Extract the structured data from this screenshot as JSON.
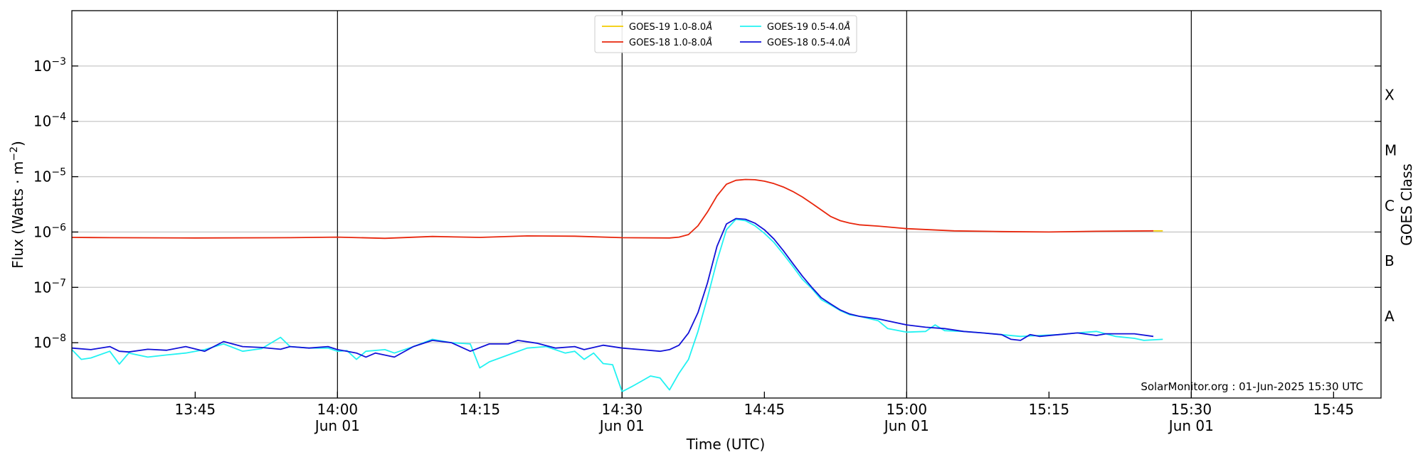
{
  "chart_data": {
    "type": "line",
    "ylabel": "Flux (Watts · m",
    "ylabel_sup": "−2",
    "ylabel_close": ")",
    "xlabel": "Time (UTC)",
    "right_label": "GOES Class",
    "credit": "SolarMonitor.org : 01-Jun-2025 15:30 UTC",
    "y_scale": "log",
    "ylim": [
      "1e-9",
      "1e-2"
    ],
    "xlim": [
      "13:32",
      "15:50"
    ],
    "grid": "horizontal at decades",
    "legend_position": "top-center",
    "y_ticks": [
      {
        "value": "1e-8",
        "base": "10",
        "exp": "−8"
      },
      {
        "value": "1e-7",
        "base": "10",
        "exp": "−7"
      },
      {
        "value": "1e-6",
        "base": "10",
        "exp": "−6"
      },
      {
        "value": "1e-5",
        "base": "10",
        "exp": "−5"
      },
      {
        "value": "1e-4",
        "base": "10",
        "exp": "−4"
      },
      {
        "value": "1e-3",
        "base": "10",
        "exp": "−3"
      }
    ],
    "x_ticks": [
      {
        "time": "13:45",
        "label": "13:45",
        "sub": ""
      },
      {
        "time": "14:00",
        "label": "14:00",
        "sub": "Jun 01"
      },
      {
        "time": "14:15",
        "label": "14:15",
        "sub": ""
      },
      {
        "time": "14:30",
        "label": "14:30",
        "sub": "Jun 01"
      },
      {
        "time": "14:45",
        "label": "14:45",
        "sub": ""
      },
      {
        "time": "15:00",
        "label": "15:00",
        "sub": "Jun 01"
      },
      {
        "time": "15:15",
        "label": "15:15",
        "sub": ""
      },
      {
        "time": "15:30",
        "label": "15:30",
        "sub": "Jun 01"
      },
      {
        "time": "15:45",
        "label": "15:45",
        "sub": ""
      }
    ],
    "vlines": [
      "14:00",
      "14:30",
      "15:00",
      "15:30"
    ],
    "goes_classes": [
      {
        "label": "A",
        "value": "3e-8"
      },
      {
        "label": "B",
        "value": "3e-7"
      },
      {
        "label": "C",
        "value": "3e-6"
      },
      {
        "label": "M",
        "value": "3e-5"
      },
      {
        "label": "X",
        "value": "3e-4"
      }
    ],
    "series": [
      {
        "name": "GOES-19 1.0-8.0Å",
        "legend_base": "GOES-19 1.0-8.0",
        "color": "#f2cc00",
        "points": [
          [
            "15:26",
            1.05e-06
          ],
          [
            "15:27",
            1.05e-06
          ]
        ]
      },
      {
        "name": "GOES-18 1.0-8.0Å",
        "legend_base": "GOES-18 1.0-8.0",
        "color": "#e8260c",
        "points": [
          [
            "13:32",
            8e-07
          ],
          [
            "13:36",
            7.9e-07
          ],
          [
            "13:45",
            7.8e-07
          ],
          [
            "13:55",
            7.9e-07
          ],
          [
            "14:00",
            8.1e-07
          ],
          [
            "14:05",
            7.7e-07
          ],
          [
            "14:10",
            8.3e-07
          ],
          [
            "14:15",
            8e-07
          ],
          [
            "14:20",
            8.5e-07
          ],
          [
            "14:25",
            8.4e-07
          ],
          [
            "14:30",
            7.9e-07
          ],
          [
            "14:35",
            7.8e-07
          ],
          [
            "14:36",
            8.1e-07
          ],
          [
            "14:37",
            9e-07
          ],
          [
            "14:38",
            1.3e-06
          ],
          [
            "14:39",
            2.3e-06
          ],
          [
            "14:40",
            4.5e-06
          ],
          [
            "14:41",
            7.3e-06
          ],
          [
            "14:42",
            8.6e-06
          ],
          [
            "14:43",
            8.9e-06
          ],
          [
            "14:44",
            8.8e-06
          ],
          [
            "14:45",
            8.3e-06
          ],
          [
            "14:46",
            7.5e-06
          ],
          [
            "14:47",
            6.5e-06
          ],
          [
            "14:48",
            5.4e-06
          ],
          [
            "14:49",
            4.3e-06
          ],
          [
            "14:50",
            3.3e-06
          ],
          [
            "14:51",
            2.5e-06
          ],
          [
            "14:52",
            1.9e-06
          ],
          [
            "14:53",
            1.6e-06
          ],
          [
            "14:54",
            1.45e-06
          ],
          [
            "14:55",
            1.35e-06
          ],
          [
            "14:57",
            1.28e-06
          ],
          [
            "15:00",
            1.15e-06
          ],
          [
            "15:05",
            1.05e-06
          ],
          [
            "15:10",
            1.02e-06
          ],
          [
            "15:15",
            1e-06
          ],
          [
            "15:20",
            1.03e-06
          ],
          [
            "15:26",
            1.05e-06
          ]
        ]
      },
      {
        "name": "GOES-19 0.5-4.0Å",
        "legend_base": "GOES-19 0.5-4.0",
        "color": "#22f2f2",
        "points": [
          [
            "13:32",
            7.5e-09
          ],
          [
            "13:33",
            5e-09
          ],
          [
            "13:34",
            5.3e-09
          ],
          [
            "13:36",
            7e-09
          ],
          [
            "13:37",
            4.1e-09
          ],
          [
            "13:38",
            6.5e-09
          ],
          [
            "13:40",
            5.5e-09
          ],
          [
            "13:42",
            6e-09
          ],
          [
            "13:44",
            6.5e-09
          ],
          [
            "13:46",
            7.5e-09
          ],
          [
            "13:48",
            9.5e-09
          ],
          [
            "13:50",
            7e-09
          ],
          [
            "13:52",
            7.8e-09
          ],
          [
            "13:54",
            1.25e-08
          ],
          [
            "13:55",
            8.5e-09
          ],
          [
            "13:57",
            8e-09
          ],
          [
            "13:59",
            8e-09
          ],
          [
            "14:00",
            7e-09
          ],
          [
            "14:01",
            7.2e-09
          ],
          [
            "14:02",
            5e-09
          ],
          [
            "14:03",
            7e-09
          ],
          [
            "14:05",
            7.5e-09
          ],
          [
            "14:06",
            6.5e-09
          ],
          [
            "14:08",
            8.5e-09
          ],
          [
            "14:10",
            1.15e-08
          ],
          [
            "14:12",
            1e-08
          ],
          [
            "14:14",
            9.5e-09
          ],
          [
            "14:15",
            3.5e-09
          ],
          [
            "14:16",
            4.5e-09
          ],
          [
            "14:18",
            6e-09
          ],
          [
            "14:20",
            8e-09
          ],
          [
            "14:22",
            8.5e-09
          ],
          [
            "14:24",
            6.5e-09
          ],
          [
            "14:25",
            7e-09
          ],
          [
            "14:26",
            5e-09
          ],
          [
            "14:27",
            6.5e-09
          ],
          [
            "14:28",
            4.2e-09
          ],
          [
            "14:29",
            4e-09
          ],
          [
            "14:30",
            1.3e-09
          ],
          [
            "14:31",
            1.6e-09
          ],
          [
            "14:32",
            2e-09
          ],
          [
            "14:33",
            2.5e-09
          ],
          [
            "14:34",
            2.3e-09
          ],
          [
            "14:35",
            1.4e-09
          ],
          [
            "14:36",
            2.8e-09
          ],
          [
            "14:37",
            5e-09
          ],
          [
            "14:38",
            1.6e-08
          ],
          [
            "14:39",
            6.5e-08
          ],
          [
            "14:40",
            3e-07
          ],
          [
            "14:41",
            1.1e-06
          ],
          [
            "14:42",
            1.7e-06
          ],
          [
            "14:43",
            1.6e-06
          ],
          [
            "14:44",
            1.3e-06
          ],
          [
            "14:45",
            9.5e-07
          ],
          [
            "14:46",
            6.5e-07
          ],
          [
            "14:47",
            4e-07
          ],
          [
            "14:48",
            2.4e-07
          ],
          [
            "14:49",
            1.4e-07
          ],
          [
            "14:50",
            9.5e-08
          ],
          [
            "14:51",
            6e-08
          ],
          [
            "14:52",
            4.8e-08
          ],
          [
            "14:53",
            3.8e-08
          ],
          [
            "14:54",
            3.2e-08
          ],
          [
            "14:55",
            3e-08
          ],
          [
            "14:57",
            2.5e-08
          ],
          [
            "14:58",
            1.8e-08
          ],
          [
            "15:00",
            1.55e-08
          ],
          [
            "15:02",
            1.6e-08
          ],
          [
            "15:03",
            2.1e-08
          ],
          [
            "15:04",
            1.65e-08
          ],
          [
            "15:06",
            1.6e-08
          ],
          [
            "15:08",
            1.5e-08
          ],
          [
            "15:10",
            1.4e-08
          ],
          [
            "15:12",
            1.3e-08
          ],
          [
            "15:14",
            1.35e-08
          ],
          [
            "15:16",
            1.4e-08
          ],
          [
            "15:18",
            1.5e-08
          ],
          [
            "15:20",
            1.6e-08
          ],
          [
            "15:22",
            1.3e-08
          ],
          [
            "15:24",
            1.2e-08
          ],
          [
            "15:25",
            1.1e-08
          ],
          [
            "15:27",
            1.15e-08
          ]
        ]
      },
      {
        "name": "GOES-18 0.5-4.0Å",
        "legend_base": "GOES-18 0.5-4.0",
        "color": "#1212d8",
        "points": [
          [
            "13:32",
            8e-09
          ],
          [
            "13:34",
            7.5e-09
          ],
          [
            "13:36",
            8.5e-09
          ],
          [
            "13:37",
            7e-09
          ],
          [
            "13:38",
            6.8e-09
          ],
          [
            "13:40",
            7.6e-09
          ],
          [
            "13:42",
            7.3e-09
          ],
          [
            "13:44",
            8.5e-09
          ],
          [
            "13:46",
            7e-09
          ],
          [
            "13:48",
            1.05e-08
          ],
          [
            "13:50",
            8.5e-09
          ],
          [
            "13:52",
            8.2e-09
          ],
          [
            "13:54",
            7.6e-09
          ],
          [
            "13:55",
            8.5e-09
          ],
          [
            "13:57",
            8e-09
          ],
          [
            "13:59",
            8.5e-09
          ],
          [
            "14:00",
            7.5e-09
          ],
          [
            "14:01",
            7e-09
          ],
          [
            "14:02",
            6.5e-09
          ],
          [
            "14:03",
            5.5e-09
          ],
          [
            "14:04",
            6.5e-09
          ],
          [
            "14:06",
            5.5e-09
          ],
          [
            "14:08",
            8.5e-09
          ],
          [
            "14:10",
            1.1e-08
          ],
          [
            "14:12",
            1e-08
          ],
          [
            "14:14",
            7e-09
          ],
          [
            "14:16",
            9.5e-09
          ],
          [
            "14:18",
            9.5e-09
          ],
          [
            "14:19",
            1.1e-08
          ],
          [
            "14:21",
            9.8e-09
          ],
          [
            "14:23",
            8e-09
          ],
          [
            "14:25",
            8.5e-09
          ],
          [
            "14:26",
            7.5e-09
          ],
          [
            "14:28",
            9e-09
          ],
          [
            "14:30",
            8e-09
          ],
          [
            "14:32",
            7.5e-09
          ],
          [
            "14:34",
            7e-09
          ],
          [
            "14:35",
            7.5e-09
          ],
          [
            "14:36",
            9e-09
          ],
          [
            "14:37",
            1.5e-08
          ],
          [
            "14:38",
            3.5e-08
          ],
          [
            "14:39",
            1.2e-07
          ],
          [
            "14:40",
            5.5e-07
          ],
          [
            "14:41",
            1.4e-06
          ],
          [
            "14:42",
            1.75e-06
          ],
          [
            "14:43",
            1.7e-06
          ],
          [
            "14:44",
            1.45e-06
          ],
          [
            "14:45",
            1.1e-06
          ],
          [
            "14:46",
            7.5e-07
          ],
          [
            "14:47",
            4.6e-07
          ],
          [
            "14:48",
            2.7e-07
          ],
          [
            "14:49",
            1.6e-07
          ],
          [
            "14:50",
            1e-07
          ],
          [
            "14:51",
            6.5e-08
          ],
          [
            "14:52",
            5e-08
          ],
          [
            "14:53",
            3.9e-08
          ],
          [
            "14:54",
            3.3e-08
          ],
          [
            "14:55",
            3e-08
          ],
          [
            "14:57",
            2.7e-08
          ],
          [
            "15:00",
            2.1e-08
          ],
          [
            "15:02",
            1.9e-08
          ],
          [
            "15:04",
            1.8e-08
          ],
          [
            "15:06",
            1.6e-08
          ],
          [
            "15:08",
            1.5e-08
          ],
          [
            "15:10",
            1.4e-08
          ],
          [
            "15:11",
            1.15e-08
          ],
          [
            "15:12",
            1.1e-08
          ],
          [
            "15:13",
            1.4e-08
          ],
          [
            "15:14",
            1.3e-08
          ],
          [
            "15:16",
            1.4e-08
          ],
          [
            "15:18",
            1.5e-08
          ],
          [
            "15:20",
            1.35e-08
          ],
          [
            "15:21",
            1.45e-08
          ],
          [
            "15:24",
            1.45e-08
          ],
          [
            "15:26",
            1.3e-08
          ]
        ]
      }
    ]
  }
}
